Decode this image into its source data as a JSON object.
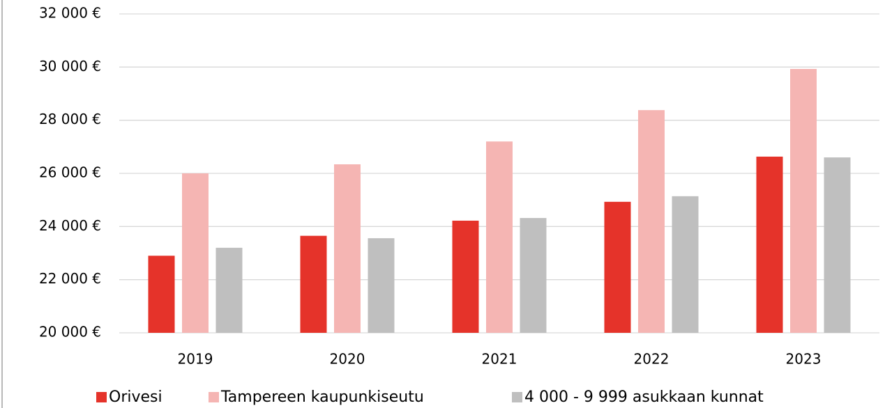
{
  "chart_data": {
    "type": "bar",
    "categories": [
      "2019",
      "2020",
      "2021",
      "2022",
      "2023"
    ],
    "series": [
      {
        "name": "Orivesi",
        "color": "#e5332a",
        "values": [
          22900,
          23650,
          24220,
          24930,
          26630
        ]
      },
      {
        "name": "Tampereen kaupunkiseutu",
        "color": "#f5b5b3",
        "values": [
          26000,
          26340,
          27200,
          28380,
          29930
        ]
      },
      {
        "name": "4 000 - 9 999 asukkaan kunnat",
        "color": "#bfbfbf",
        "values": [
          23200,
          23560,
          24320,
          25140,
          26600
        ]
      }
    ],
    "ylim": [
      20000,
      32000
    ],
    "yticks": [
      {
        "value": 20000,
        "label": "20 000 €"
      },
      {
        "value": 22000,
        "label": "22 000 €"
      },
      {
        "value": 24000,
        "label": "24 000 €"
      },
      {
        "value": 26000,
        "label": "26 000 €"
      },
      {
        "value": 28000,
        "label": "28 000 €"
      },
      {
        "value": 30000,
        "label": "30 000 €"
      },
      {
        "value": 32000,
        "label": "32 000 €"
      }
    ],
    "grid": true,
    "legend": "bottom"
  }
}
